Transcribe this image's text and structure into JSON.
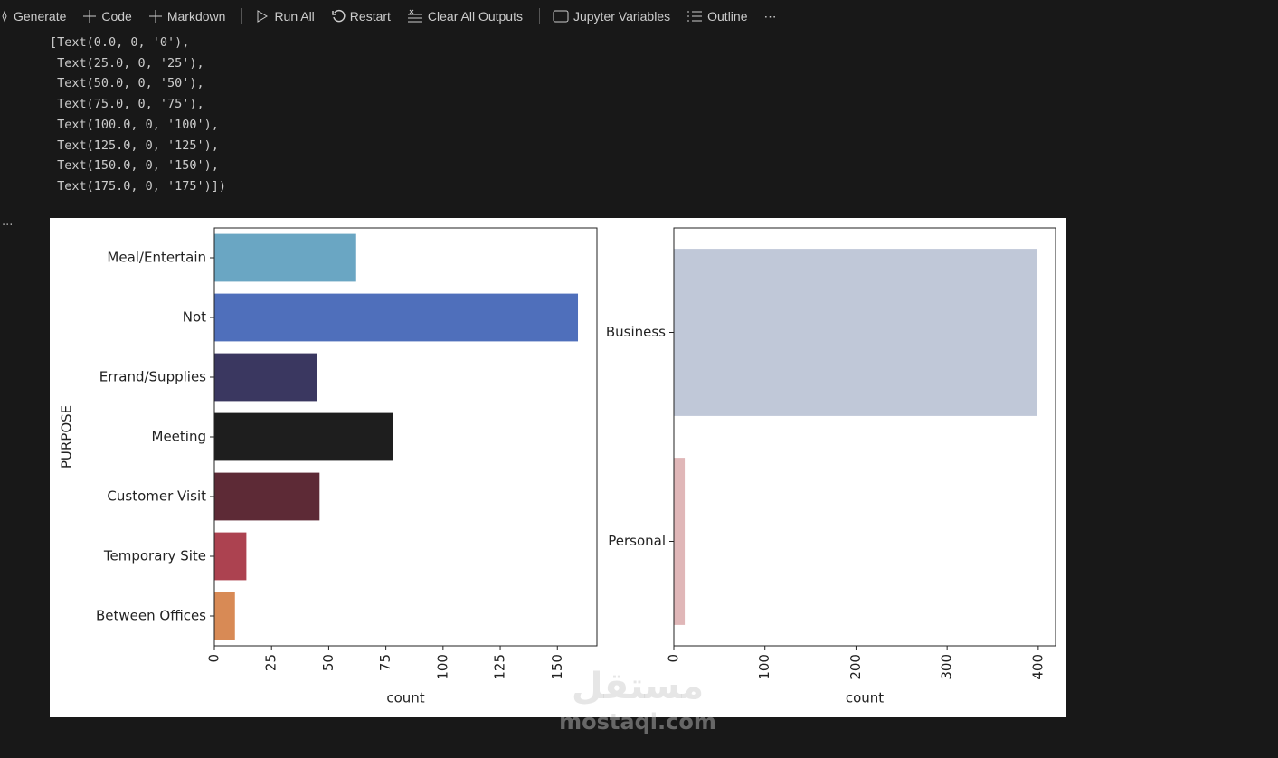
{
  "toolbar": [
    "Generate",
    "Code",
    "Markdown",
    "Run All",
    "Restart",
    "Clear All Outputs",
    "Jupyter Variables",
    "Outline"
  ],
  "toolbar_more": "⋯",
  "cell_more": "...",
  "output_lines": [
    "[Text(0.0, 0, '0'),",
    " Text(25.0, 0, '25'),",
    " Text(50.0, 0, '50'),",
    " Text(75.0, 0, '75'),",
    " Text(100.0, 0, '100'),",
    " Text(125.0, 0, '125'),",
    " Text(150.0, 0, '150'),",
    " Text(175.0, 0, '175')])"
  ],
  "watermark": {
    "arabic": "مستقل",
    "latin": "mostaql.com"
  },
  "chart_data": [
    {
      "type": "barh",
      "ylabel": "PURPOSE",
      "xlabel": "count",
      "categories": [
        "Meal/Entertain",
        "Not",
        "Errand/Supplies",
        "Meeting",
        "Customer Visit",
        "Temporary Site",
        "Between Offices"
      ],
      "values": [
        62,
        159,
        45,
        78,
        46,
        14,
        9
      ],
      "colors": [
        "#6aa6c3",
        "#4f6fbb",
        "#3a3760",
        "#1e1e1e",
        "#5d2a36",
        "#ac4250",
        "#d88a55"
      ],
      "xlim": [
        0,
        167.3
      ],
      "xticks": [
        0,
        25,
        50,
        75,
        100,
        125,
        150
      ]
    },
    {
      "type": "barh",
      "xlabel": "count",
      "categories": [
        "Business",
        "Personal"
      ],
      "values": [
        399,
        12
      ],
      "colors": [
        "#c0c8d8",
        "#e0b7b8"
      ],
      "xlim": [
        0,
        419
      ],
      "xticks": [
        0,
        100,
        200,
        300,
        400
      ]
    }
  ]
}
